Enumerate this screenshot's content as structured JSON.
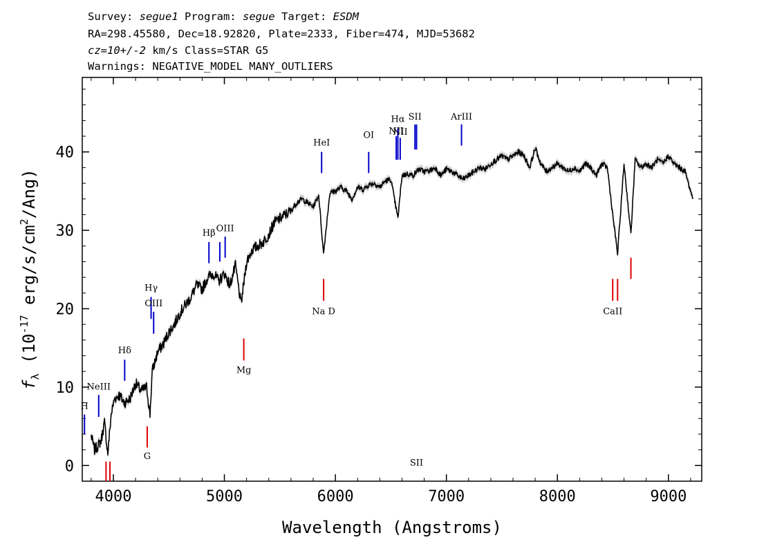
{
  "header": {
    "line1": [
      {
        "text": "Survey: ",
        "italic": false
      },
      {
        "text": "segue1",
        "italic": true
      },
      {
        "text": " Program: ",
        "italic": false
      },
      {
        "text": "segue",
        "italic": true
      },
      {
        "text": " Target: ",
        "italic": false
      },
      {
        "text": "ESDM",
        "italic": true
      }
    ],
    "line2": "RA=298.45580, Dec=18.92820, Plate=2333, Fiber=474, MJD=53682",
    "line3": [
      {
        "text": "cz=10+/-2",
        "italic": true
      },
      {
        "text": " km/s Class=STAR G5",
        "italic": false
      }
    ],
    "line4": "Warnings: NEGATIVE_MODEL MANY_OUTLIERS"
  },
  "chart_data": {
    "type": "line",
    "xlabel": "Wavelength (Angstroms)",
    "ylabel_parts": {
      "symbol": "f",
      "sub": "λ",
      "pre": " (10",
      "exp": "-17",
      "mid": " erg/s/cm",
      "exp2": "2",
      "post": "/Ang)"
    },
    "xlim": [
      3720,
      9300
    ],
    "ylim": [
      -2,
      49.5
    ],
    "x_ticks": [
      4000,
      5000,
      6000,
      7000,
      8000,
      9000
    ],
    "y_ticks": [
      0,
      10,
      20,
      30,
      40
    ],
    "x_tick_labels": [
      "4000",
      "5000",
      "6000",
      "7000",
      "8000",
      "9000"
    ],
    "y_tick_labels": [
      "0",
      "10",
      "20",
      "30",
      "40"
    ],
    "grid": false,
    "series": [
      {
        "color": "#000000",
        "x": [
          3800,
          3830,
          3860,
          3890,
          3920,
          3950,
          3980,
          4010,
          4050,
          4100,
          4150,
          4200,
          4250,
          4300,
          4330,
          4350,
          4400,
          4450,
          4500,
          4550,
          4600,
          4650,
          4700,
          4750,
          4800,
          4850,
          4900,
          4950,
          5000,
          5050,
          5100,
          5150,
          5200,
          5250,
          5300,
          5350,
          5400,
          5450,
          5500,
          5550,
          5600,
          5650,
          5700,
          5750,
          5800,
          5850,
          5893,
          5950,
          6000,
          6050,
          6100,
          6150,
          6200,
          6250,
          6300,
          6350,
          6400,
          6450,
          6500,
          6563,
          6600,
          6650,
          6700,
          6750,
          6800,
          6850,
          6900,
          6950,
          7000,
          7050,
          7100,
          7150,
          7200,
          7250,
          7300,
          7350,
          7400,
          7450,
          7500,
          7550,
          7600,
          7650,
          7700,
          7750,
          7800,
          7850,
          7900,
          7950,
          8000,
          8050,
          8100,
          8150,
          8200,
          8250,
          8300,
          8350,
          8400,
          8450,
          8498,
          8542,
          8600,
          8662,
          8700,
          8750,
          8800,
          8850,
          8900,
          8950,
          9000,
          9050,
          9100,
          9150,
          9200,
          9220
        ],
        "y": [
          3.8,
          2.0,
          2.5,
          3.2,
          5.5,
          1.5,
          6.5,
          8.5,
          9.0,
          8.0,
          8.5,
          10.5,
          9.5,
          10.0,
          6.5,
          12.0,
          14.5,
          15.5,
          17.0,
          18.0,
          19.5,
          20.5,
          21.5,
          23.0,
          22.5,
          24.0,
          24.5,
          23.5,
          24.5,
          23.0,
          25.5,
          20.5,
          26.0,
          27.5,
          28.0,
          28.5,
          29.5,
          31.0,
          31.5,
          32.0,
          32.5,
          33.5,
          34.0,
          33.5,
          33.0,
          34.5,
          27.0,
          34.8,
          35.0,
          35.5,
          35.0,
          34.0,
          35.5,
          35.2,
          35.8,
          36.0,
          35.5,
          36.3,
          36.5,
          31.5,
          37.0,
          37.2,
          37.0,
          37.8,
          37.5,
          37.6,
          38.0,
          37.0,
          37.8,
          37.5,
          37.0,
          36.5,
          37.0,
          37.5,
          38.0,
          37.8,
          38.5,
          39.0,
          39.5,
          39.0,
          39.5,
          40.0,
          39.5,
          38.0,
          40.5,
          38.5,
          37.5,
          38.0,
          38.5,
          38.0,
          37.5,
          38.0,
          37.5,
          38.5,
          38.0,
          37.0,
          38.5,
          38.0,
          32.0,
          27.0,
          38.5,
          29.5,
          39.0,
          38.0,
          38.5,
          38.0,
          39.0,
          38.5,
          39.5,
          38.5,
          38.0,
          37.5,
          35.0,
          34.0
        ]
      }
    ],
    "emission_lines": [
      {
        "label": "H",
        "x": 3740,
        "y_top": 6.5,
        "y_bot": 4.0,
        "label_y": 7.2
      },
      {
        "label": "NeIII",
        "x": 3868,
        "y_top": 9.0,
        "y_bot": 6.2,
        "label_y": 9.7
      },
      {
        "label": "Hδ",
        "x": 4102,
        "y_top": 13.5,
        "y_bot": 10.8,
        "label_y": 14.3
      },
      {
        "label": "Hγ",
        "x": 4340,
        "y_top": 21.5,
        "y_bot": 18.7,
        "label_y": 22.3
      },
      {
        "label": "OIII",
        "x": 4363,
        "y_top": 19.6,
        "y_bot": 16.8,
        "label_y": 20.3
      },
      {
        "label": "Hβ",
        "x": 4861,
        "y_top": 28.5,
        "y_bot": 25.8,
        "label_y": 29.3
      },
      {
        "label": "",
        "x": 4959,
        "y_top": 28.5,
        "y_bot": 26.0,
        "label_y": 0
      },
      {
        "label": "OIII",
        "x": 5007,
        "y_top": 29.2,
        "y_bot": 26.5,
        "label_y": 29.9
      },
      {
        "label": "HeI",
        "x": 5876,
        "y_top": 40.0,
        "y_bot": 37.3,
        "label_y": 40.8
      },
      {
        "label": "OI",
        "x": 6300,
        "y_top": 40.0,
        "y_bot": 37.3,
        "label_y": 41.8
      },
      {
        "label": "NII",
        "x": 6548,
        "y_top": 42.0,
        "y_bot": 39.0,
        "label_y": 42.3
      },
      {
        "label": "Hα",
        "x": 6563,
        "y_top": 43.0,
        "y_bot": 39.0,
        "label_y": 43.8
      },
      {
        "label": "NII",
        "x": 6584,
        "y_top": 41.8,
        "y_bot": 39.0,
        "label_y": 42.2
      },
      {
        "label": "SII",
        "x": 6717,
        "y_top": 43.5,
        "y_bot": 40.3,
        "label_y": 44.1
      },
      {
        "label": "SII",
        "x": 6731,
        "y_top": 43.5,
        "y_bot": 40.3,
        "label_y": 0
      },
      {
        "label": "ArIII",
        "x": 7136,
        "y_top": 43.5,
        "y_bot": 40.8,
        "label_y": 44.1
      }
    ],
    "absorption_lines": [
      {
        "label": "",
        "x": 3934,
        "y_top": 0.5,
        "y_bot": -2.0,
        "label_y": 0
      },
      {
        "label": "",
        "x": 3969,
        "y_top": 0.5,
        "y_bot": -2.0,
        "label_y": 0
      },
      {
        "label": "G",
        "x": 4305,
        "y_top": 5.0,
        "y_bot": 2.3,
        "label_y": 0.8
      },
      {
        "label": "Mg",
        "x": 5175,
        "y_top": 16.2,
        "y_bot": 13.4,
        "label_y": 11.8
      },
      {
        "label": "Na D",
        "x": 5894,
        "y_top": 23.8,
        "y_bot": 21.0,
        "label_y": 19.3
      },
      {
        "label": "CaII",
        "x": 8498,
        "y_top": 23.8,
        "y_bot": 21.0,
        "label_y": 19.3
      },
      {
        "label": "",
        "x": 8542,
        "y_top": 23.8,
        "y_bot": 21.0,
        "label_y": 0
      },
      {
        "label": "",
        "x": 8662,
        "y_top": 26.5,
        "y_bot": 23.8,
        "label_y": 0
      }
    ],
    "colors": {
      "emission": "#0000cc",
      "absorption": "#dd0000",
      "spectrum": "#000000",
      "error_band": "#b0b0b0"
    }
  }
}
